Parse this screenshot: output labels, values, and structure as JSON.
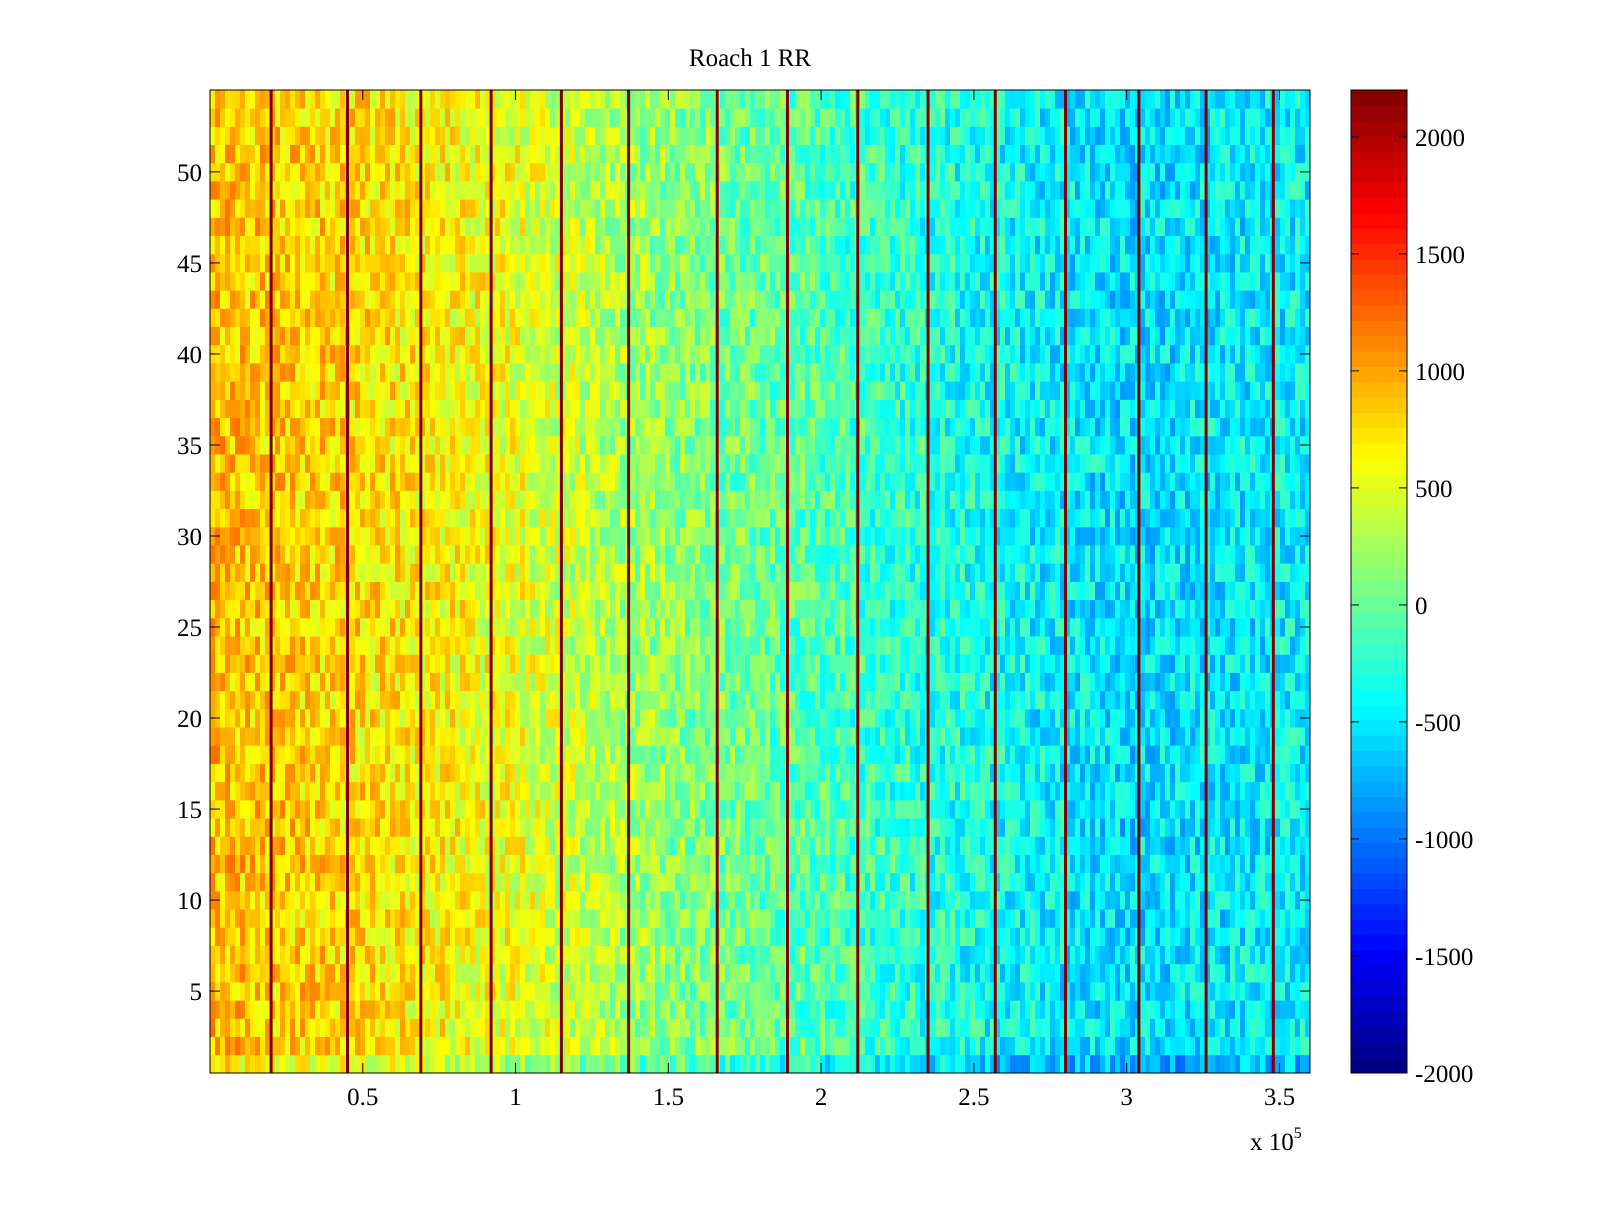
{
  "chart_data": {
    "type": "heatmap",
    "title": "Roach 1 RR",
    "xlabel": "",
    "ylabel": "",
    "x_multiplier_label": "x 10",
    "x_multiplier_exponent": "5",
    "xlim": [
      0,
      3.6
    ],
    "ylim": [
      0.5,
      54.5
    ],
    "n_rows": 54,
    "x_ticks": [
      0.5,
      1,
      1.5,
      2,
      2.5,
      3,
      3.5
    ],
    "x_tick_labels": [
      "0.5",
      "1",
      "1.5",
      "2",
      "2.5",
      "3",
      "3.5"
    ],
    "y_ticks": [
      5,
      10,
      15,
      20,
      25,
      30,
      35,
      40,
      45,
      50
    ],
    "y_tick_labels": [
      "5",
      "10",
      "15",
      "20",
      "25",
      "30",
      "35",
      "40",
      "45",
      "50"
    ],
    "colorbar": {
      "colormap": "jet",
      "clim": [
        -2000,
        2200
      ],
      "ticks": [
        -2000,
        -1500,
        -1000,
        -500,
        0,
        500,
        1000,
        1500,
        2000
      ],
      "tick_labels": [
        "-2000",
        "-1500",
        "-1000",
        "-500",
        "0",
        "500",
        "1000",
        "1500",
        "2000"
      ]
    },
    "trend_x": [
      0,
      0.5,
      1.0,
      1.5,
      2.0,
      2.5,
      3.0,
      3.6
    ],
    "trend_values": [
      900,
      750,
      550,
      150,
      -100,
      -350,
      -550,
      -450
    ],
    "spike_lines_x": [
      0.2,
      0.45,
      0.69,
      0.92,
      1.15,
      1.37,
      1.66,
      1.89,
      2.12,
      2.35,
      2.57,
      2.8,
      3.04,
      3.26,
      3.48
    ],
    "spike_value": 2200,
    "grid": false
  }
}
